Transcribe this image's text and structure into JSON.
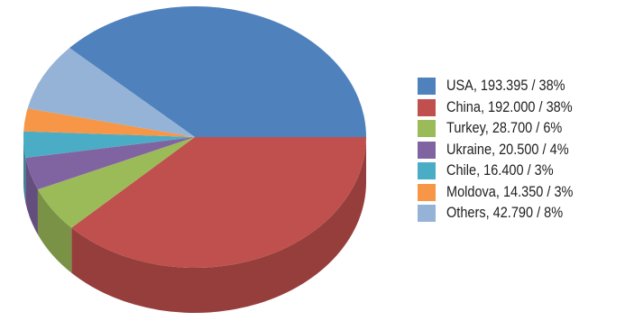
{
  "chart_data": {
    "type": "pie",
    "style": "3d",
    "title": "",
    "legend_position": "right",
    "slices": [
      {
        "label": "USA, 193.395 / 38%",
        "name": "USA",
        "value": 193.395,
        "percent": 38,
        "color": "#4f81bd"
      },
      {
        "label": "China, 192.000 / 38%",
        "name": "China",
        "value": 192.0,
        "percent": 38,
        "color": "#c0504d"
      },
      {
        "label": "Turkey, 28.700 / 6%",
        "name": "Turkey",
        "value": 28.7,
        "percent": 6,
        "color": "#9bbb59"
      },
      {
        "label": "Ukraine, 20.500 / 4%",
        "name": "Ukraine",
        "value": 20.5,
        "percent": 4,
        "color": "#8064a2"
      },
      {
        "label": "Chile, 16.400 / 3%",
        "name": "Chile",
        "value": 16.4,
        "percent": 3,
        "color": "#4bacc6"
      },
      {
        "label": "Moldova, 14.350 / 3%",
        "name": "Moldova",
        "value": 14.35,
        "percent": 3,
        "color": "#f79646"
      },
      {
        "label": "Others, 42.790 / 8%",
        "name": "Others",
        "value": 42.79,
        "percent": 8,
        "color": "#95b3d7"
      }
    ]
  }
}
